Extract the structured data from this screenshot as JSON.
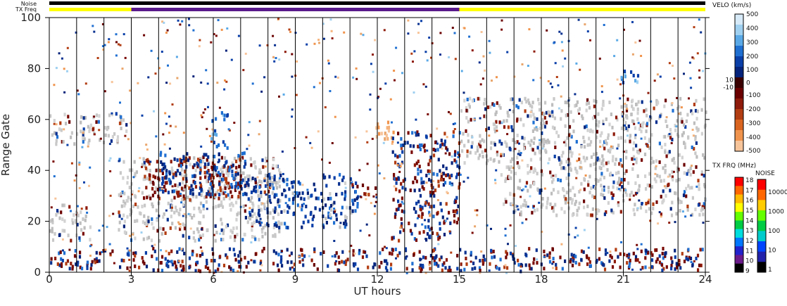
{
  "chart_data": {
    "type": "heatmap",
    "xlabel": "UT hours",
    "ylabel": "Range Gate",
    "xlim": [
      0,
      24
    ],
    "ylim": [
      0,
      100
    ],
    "x_ticks": [
      0,
      3,
      6,
      9,
      12,
      15,
      18,
      21,
      24
    ],
    "y_ticks": [
      0,
      20,
      40,
      60,
      80,
      100
    ],
    "scan_boundaries_hours": [
      1.0,
      2.0,
      3.0,
      4.0,
      5.0,
      6.0,
      7.0,
      8.0,
      9.0,
      10.0,
      11.0,
      12.0,
      13.0,
      14.0,
      15.0,
      16.0,
      17.0,
      18.0,
      19.0,
      20.0,
      21.0,
      22.0,
      23.0
    ],
    "noise_label": "Noise",
    "txfreq_label": "TX Freq",
    "txfreq_segments": [
      {
        "start": 0,
        "end": 3,
        "color": "#ffff00"
      },
      {
        "start": 3,
        "end": 15,
        "color": "#5a1a8c"
      },
      {
        "start": 15,
        "end": 24,
        "color": "#ffff00"
      }
    ],
    "velocity_colorbar": {
      "title": "VELO (km/s)",
      "ticks": [
        "500",
        "400",
        "300",
        "200",
        "100",
        "10",
        "0",
        "-10",
        "-100",
        "-200",
        "-300",
        "-400",
        "-500"
      ],
      "colors_top_to_bottom": [
        "#d6eaf8",
        "#9fd0f0",
        "#5aa9e6",
        "#1f6fd1",
        "#0a3fa8",
        "#05237a",
        "#3a0000",
        "#6b0000",
        "#8e1b0b",
        "#b23d12",
        "#d9641f",
        "#f0944d",
        "#f7c49a"
      ]
    },
    "txfreq_colorbar": {
      "title": "TX FRQ (MHz)",
      "ticks": [
        "18",
        "17",
        "16",
        "15",
        "14",
        "13",
        "12",
        "11",
        "10",
        "9"
      ],
      "colors_top_to_bottom": [
        "#ff0000",
        "#ff6600",
        "#ffbb00",
        "#ffff00",
        "#66ff00",
        "#00cc44",
        "#00dddd",
        "#0077ff",
        "#2222cc",
        "#6a1a8a",
        "#000000"
      ]
    },
    "noise_colorbar": {
      "title": "NOISE",
      "ticks": [
        "10000",
        "1000",
        "100",
        "10",
        "1"
      ],
      "colors_top_to_bottom": [
        "#ff0000",
        "#ff6600",
        "#ffcc00",
        "#66ff00",
        "#00cc44",
        "#00cccc",
        "#0044ff",
        "#2222aa",
        "#000000"
      ]
    },
    "echo_regions": [
      {
        "x0": 0.0,
        "x1": 2.8,
        "y0": 50,
        "y1": 62,
        "kind": "ground"
      },
      {
        "x0": 2.5,
        "x1": 8.5,
        "y0": 12,
        "y1": 45,
        "kind": "ground"
      },
      {
        "x0": 0.0,
        "x1": 1.5,
        "y0": 12,
        "y1": 26,
        "kind": "ground"
      },
      {
        "x0": 3.5,
        "x1": 7.0,
        "y0": 28,
        "y1": 45,
        "kind": "negative"
      },
      {
        "x0": 4.0,
        "x1": 7.2,
        "y0": 30,
        "y1": 47,
        "kind": "positive"
      },
      {
        "x0": 5.9,
        "x1": 6.5,
        "y0": 48,
        "y1": 63,
        "kind": "positive-bright"
      },
      {
        "x0": 7.2,
        "x1": 11.3,
        "y0": 17,
        "y1": 38,
        "kind": "positive"
      },
      {
        "x0": 11.0,
        "x1": 11.9,
        "y0": 30,
        "y1": 34,
        "kind": "negative"
      },
      {
        "x0": 11.9,
        "x1": 12.7,
        "y0": 52,
        "y1": 61,
        "kind": "negative-light"
      },
      {
        "x0": 12.5,
        "x1": 15.0,
        "y0": 12,
        "y1": 55,
        "kind": "mixed"
      },
      {
        "x0": 15.0,
        "x1": 24.0,
        "y0": 42,
        "y1": 68,
        "kind": "ground"
      },
      {
        "x0": 16.5,
        "x1": 24.0,
        "y0": 22,
        "y1": 42,
        "kind": "ground"
      },
      {
        "x0": 20.8,
        "x1": 21.6,
        "y0": 73,
        "y1": 79,
        "kind": "positive-bright"
      },
      {
        "x0": 0.0,
        "x1": 24.0,
        "y0": 0,
        "y1": 9,
        "kind": "mixed"
      }
    ]
  }
}
